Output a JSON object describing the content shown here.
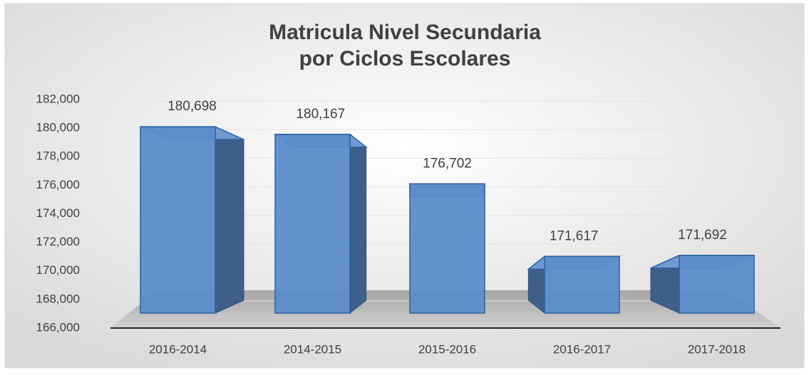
{
  "chart_data": {
    "type": "bar3d",
    "title": "Matricula Nivel Secundaria",
    "subtitle": "por Ciclos Escolares",
    "categories": [
      "2016-2014",
      "2014-2015",
      "2015-2016",
      "2016-2017",
      "2017-2018"
    ],
    "values": [
      180698,
      180167,
      176702,
      171617,
      171692
    ],
    "value_labels": [
      "180,698",
      "180,167",
      "176,702",
      "171,617",
      "171,692"
    ],
    "color": "#5b8ccc",
    "ylim": [
      166000,
      182000
    ],
    "yticks": [
      {
        "value": 166000,
        "label": "166,000"
      },
      {
        "value": 168000,
        "label": "168,000"
      },
      {
        "value": 170000,
        "label": "170,000"
      },
      {
        "value": 172000,
        "label": "172,000"
      },
      {
        "value": 174000,
        "label": "174,000"
      },
      {
        "value": 176000,
        "label": "176,000"
      },
      {
        "value": 178000,
        "label": "178,000"
      },
      {
        "value": 180000,
        "label": "180,000"
      },
      {
        "value": 182000,
        "label": "182,000"
      }
    ],
    "grid": true
  }
}
